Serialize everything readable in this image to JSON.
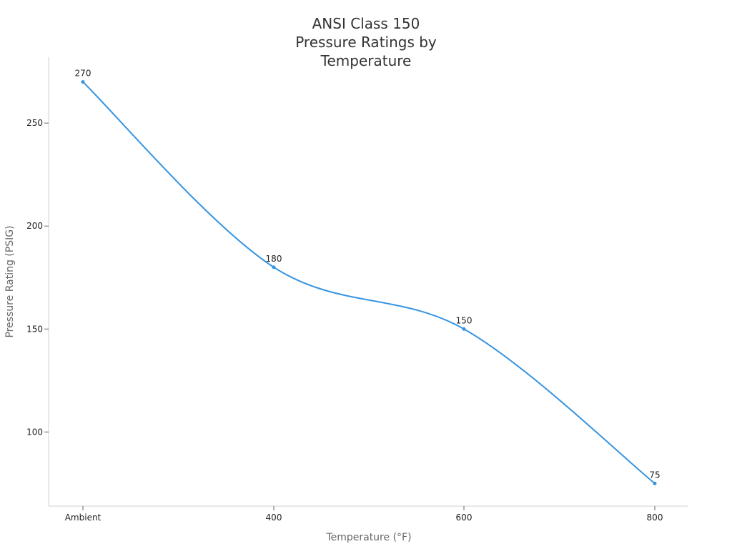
{
  "chart_data": {
    "type": "line",
    "title": [
      "ANSI Class 150",
      "Pressure Ratings by",
      "Temperature"
    ],
    "xlabel": "Temperature (°F)",
    "ylabel": "Pressure Rating (PSIG)",
    "categories": [
      "Ambient",
      "400",
      "600",
      "800"
    ],
    "values": [
      270,
      180,
      150,
      75
    ],
    "data_labels": [
      "270",
      "180",
      "150",
      "75"
    ],
    "ylim": [
      64,
      282
    ],
    "yticks": [
      100,
      150,
      200,
      250
    ],
    "ytick_labels": [
      "100",
      "150",
      "200",
      "250"
    ],
    "grid": false,
    "smooth": true,
    "line_color": "#3794e0",
    "point_color": "#3794e0"
  }
}
